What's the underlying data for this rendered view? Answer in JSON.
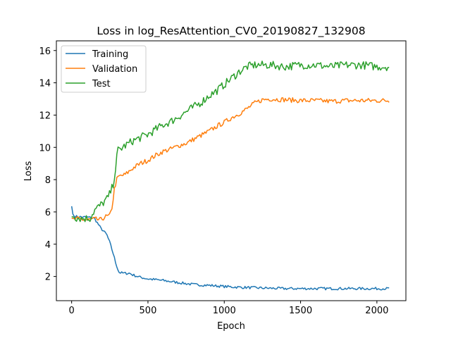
{
  "chart_data": {
    "type": "line",
    "title": "Loss in log_ResAttention_CV0_20190827_132908",
    "xlabel": "Epoch",
    "ylabel": "Loss",
    "xlim": [
      -100,
      2190
    ],
    "ylim": [
      0.5,
      16.6
    ],
    "xticks": [
      0,
      500,
      1000,
      1500,
      2000
    ],
    "yticks": [
      2,
      4,
      6,
      8,
      10,
      12,
      14,
      16
    ],
    "xtick_labels": [
      "0",
      "500",
      "1000",
      "1500",
      "2000"
    ],
    "ytick_labels": [
      "2",
      "4",
      "6",
      "8",
      "10",
      "12",
      "14",
      "16"
    ],
    "grid": false,
    "legend_position": "upper-left",
    "series": [
      {
        "name": "Training",
        "color": "#1f77b4",
        "noise": 0.08,
        "points": [
          [
            0,
            6.35
          ],
          [
            10,
            5.75
          ],
          [
            40,
            5.7
          ],
          [
            80,
            5.68
          ],
          [
            120,
            5.65
          ],
          [
            150,
            5.6
          ],
          [
            170,
            5.3
          ],
          [
            190,
            5.0
          ],
          [
            210,
            4.8
          ],
          [
            230,
            4.6
          ],
          [
            250,
            4.1
          ],
          [
            270,
            3.5
          ],
          [
            290,
            2.8
          ],
          [
            310,
            2.25
          ],
          [
            340,
            2.2
          ],
          [
            380,
            2.2
          ],
          [
            400,
            2.1
          ],
          [
            450,
            1.95
          ],
          [
            500,
            1.85
          ],
          [
            550,
            1.8
          ],
          [
            600,
            1.75
          ],
          [
            700,
            1.62
          ],
          [
            800,
            1.5
          ],
          [
            900,
            1.45
          ],
          [
            1000,
            1.38
          ],
          [
            1100,
            1.33
          ],
          [
            1200,
            1.3
          ],
          [
            1300,
            1.27
          ],
          [
            1400,
            1.25
          ],
          [
            1500,
            1.25
          ],
          [
            1600,
            1.25
          ],
          [
            1700,
            1.25
          ],
          [
            1800,
            1.25
          ],
          [
            1900,
            1.25
          ],
          [
            2000,
            1.25
          ],
          [
            2085,
            1.25
          ]
        ]
      },
      {
        "name": "Validation",
        "color": "#ff7f0e",
        "noise": 0.15,
        "points": [
          [
            0,
            5.6
          ],
          [
            50,
            5.55
          ],
          [
            100,
            5.5
          ],
          [
            150,
            5.55
          ],
          [
            190,
            5.5
          ],
          [
            220,
            5.7
          ],
          [
            250,
            5.75
          ],
          [
            265,
            6.3
          ],
          [
            280,
            7.4
          ],
          [
            295,
            8.0
          ],
          [
            310,
            8.2
          ],
          [
            350,
            8.3
          ],
          [
            400,
            8.7
          ],
          [
            450,
            9.0
          ],
          [
            500,
            9.2
          ],
          [
            550,
            9.5
          ],
          [
            600,
            9.75
          ],
          [
            650,
            9.9
          ],
          [
            700,
            10.1
          ],
          [
            750,
            10.25
          ],
          [
            800,
            10.5
          ],
          [
            850,
            10.75
          ],
          [
            900,
            11.0
          ],
          [
            950,
            11.3
          ],
          [
            1000,
            11.55
          ],
          [
            1050,
            11.85
          ],
          [
            1100,
            12.1
          ],
          [
            1150,
            12.4
          ],
          [
            1200,
            12.75
          ],
          [
            1250,
            12.95
          ],
          [
            1300,
            13.0
          ],
          [
            1400,
            12.95
          ],
          [
            1500,
            12.9
          ],
          [
            1600,
            12.9
          ],
          [
            1700,
            12.85
          ],
          [
            1800,
            12.9
          ],
          [
            1900,
            12.9
          ],
          [
            2000,
            12.9
          ],
          [
            2085,
            12.9
          ]
        ]
      },
      {
        "name": "Test",
        "color": "#2ca02c",
        "noise": 0.25,
        "points": [
          [
            0,
            5.7
          ],
          [
            60,
            5.6
          ],
          [
            120,
            5.6
          ],
          [
            150,
            6.1
          ],
          [
            200,
            6.5
          ],
          [
            240,
            6.9
          ],
          [
            270,
            7.6
          ],
          [
            290,
            8.8
          ],
          [
            300,
            9.8
          ],
          [
            320,
            9.9
          ],
          [
            350,
            10.1
          ],
          [
            400,
            10.4
          ],
          [
            450,
            10.6
          ],
          [
            500,
            10.8
          ],
          [
            550,
            11.1
          ],
          [
            600,
            11.4
          ],
          [
            650,
            11.6
          ],
          [
            700,
            11.9
          ],
          [
            750,
            12.2
          ],
          [
            800,
            12.5
          ],
          [
            850,
            12.8
          ],
          [
            900,
            13.2
          ],
          [
            950,
            13.5
          ],
          [
            1000,
            13.9
          ],
          [
            1050,
            14.3
          ],
          [
            1100,
            14.7
          ],
          [
            1150,
            15.0
          ],
          [
            1200,
            15.1
          ],
          [
            1300,
            15.1
          ],
          [
            1400,
            15.0
          ],
          [
            1500,
            15.1
          ],
          [
            1600,
            15.1
          ],
          [
            1700,
            15.0
          ],
          [
            1800,
            15.1
          ],
          [
            1900,
            15.1
          ],
          [
            2000,
            15.0
          ],
          [
            2085,
            15.0
          ]
        ]
      }
    ]
  }
}
